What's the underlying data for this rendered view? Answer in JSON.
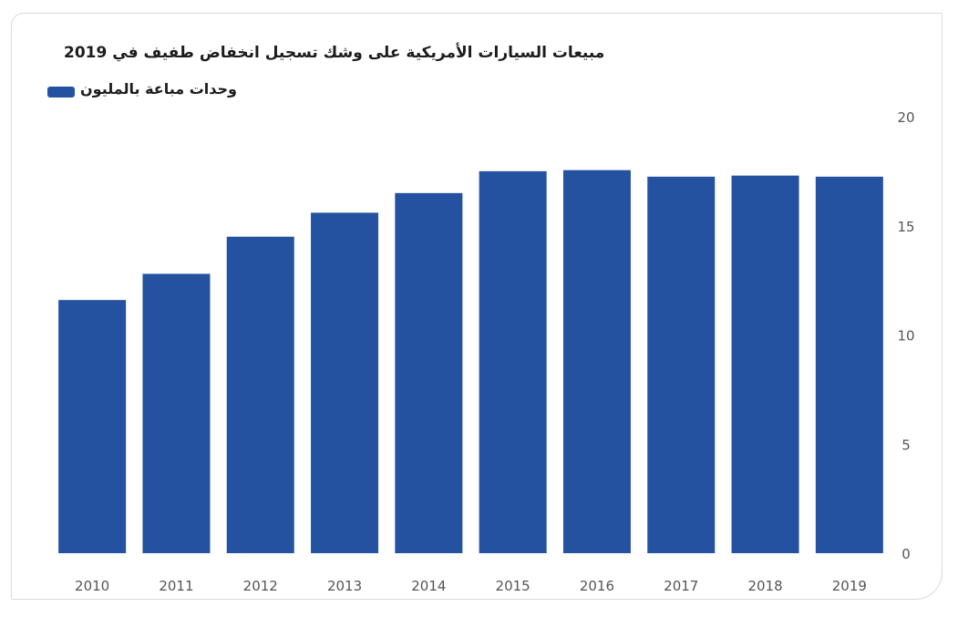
{
  "chart_data": {
    "type": "bar",
    "title": "مبيعات السيارات الأمريكية على وشك تسجيل انخفاض طفيف في 2019",
    "xlabel": "",
    "ylabel": "",
    "categories": [
      "2010",
      "2011",
      "2012",
      "2013",
      "2014",
      "2015",
      "2016",
      "2017",
      "2018",
      "2019"
    ],
    "series": [
      {
        "name": "وحدات مباعة بالمليون",
        "values": [
          11.6,
          12.8,
          14.5,
          15.6,
          16.5,
          17.5,
          17.55,
          17.25,
          17.3,
          17.25
        ]
      }
    ],
    "ylim": [
      0,
      20
    ],
    "yticks": [
      0,
      5,
      10,
      15,
      20
    ],
    "grid": false,
    "y_axis_side": "right",
    "legend_position": "top-left",
    "colors": {
      "bar": "#2452a0"
    }
  }
}
